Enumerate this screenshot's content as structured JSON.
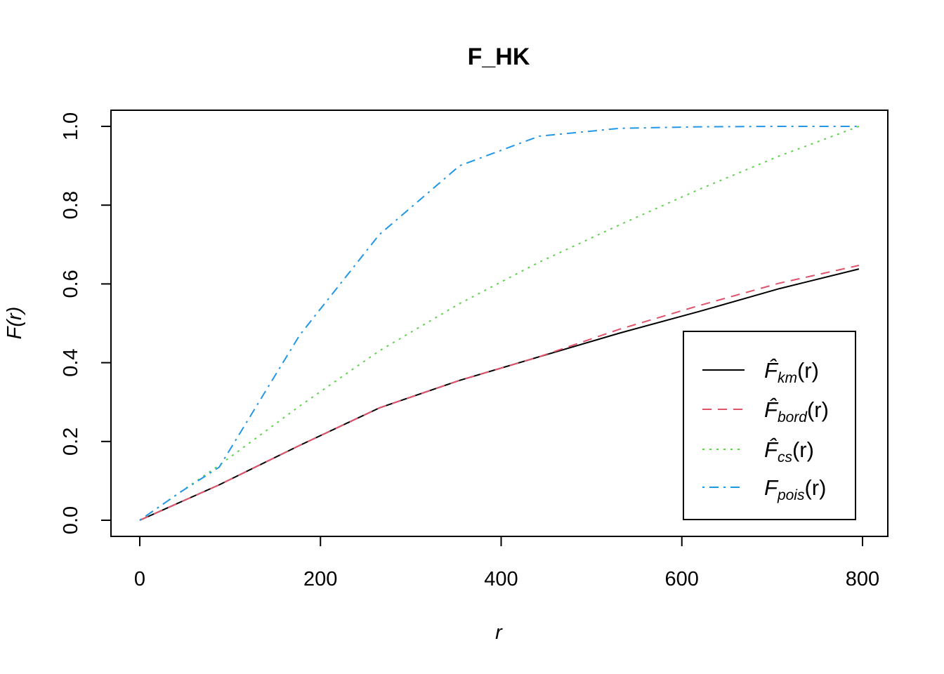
{
  "chart_data": {
    "type": "line",
    "title": "F_HK",
    "xlabel": "r",
    "ylabel": "F(r)",
    "xlim": [
      0,
      800
    ],
    "ylim": [
      0,
      1.0
    ],
    "x_ticks": [
      "0",
      "200",
      "400",
      "600",
      "800"
    ],
    "y_ticks": [
      "0.0",
      "0.2",
      "0.4",
      "0.6",
      "0.8",
      "1.0"
    ],
    "legend_position": "bottom-right",
    "series": [
      {
        "name": "F̂km(r)",
        "label_main": "F̂",
        "label_sub": "km",
        "label_arg": "(r)",
        "color": "#000000",
        "dash": "solid",
        "x": [
          0,
          88,
          177,
          265,
          354,
          442,
          531,
          619,
          708,
          796
        ],
        "y": [
          0,
          0.09,
          0.19,
          0.285,
          0.355,
          0.415,
          0.475,
          0.53,
          0.588,
          0.638
        ]
      },
      {
        "name": "F̂bord(r)",
        "label_main": "F̂",
        "label_sub": "bord",
        "label_arg": "(r)",
        "color": "#DF536B",
        "dash": "dashed",
        "x": [
          0,
          88,
          177,
          265,
          354,
          442,
          531,
          619,
          708,
          796
        ],
        "y": [
          0,
          0.09,
          0.19,
          0.285,
          0.355,
          0.415,
          0.485,
          0.545,
          0.602,
          0.647
        ]
      },
      {
        "name": "F̂cs(r)",
        "label_main": "F̂",
        "label_sub": "cs",
        "label_arg": "(r)",
        "color": "#61D04F",
        "dash": "dotted",
        "x": [
          0,
          88,
          177,
          265,
          354,
          442,
          531,
          619,
          708,
          796
        ],
        "y": [
          0,
          0.14,
          0.29,
          0.43,
          0.55,
          0.655,
          0.75,
          0.84,
          0.925,
          1.0
        ]
      },
      {
        "name": "Fpois(r)",
        "label_main": "F",
        "label_sub": "pois",
        "label_arg": "(r)",
        "color": "#2297E6",
        "dash": "dotdash",
        "x": [
          0,
          44,
          88,
          177,
          265,
          354,
          442,
          531,
          619,
          708,
          796
        ],
        "y": [
          0,
          0.07,
          0.135,
          0.47,
          0.725,
          0.9,
          0.975,
          0.995,
          0.999,
          1.0,
          1.0
        ]
      }
    ]
  }
}
